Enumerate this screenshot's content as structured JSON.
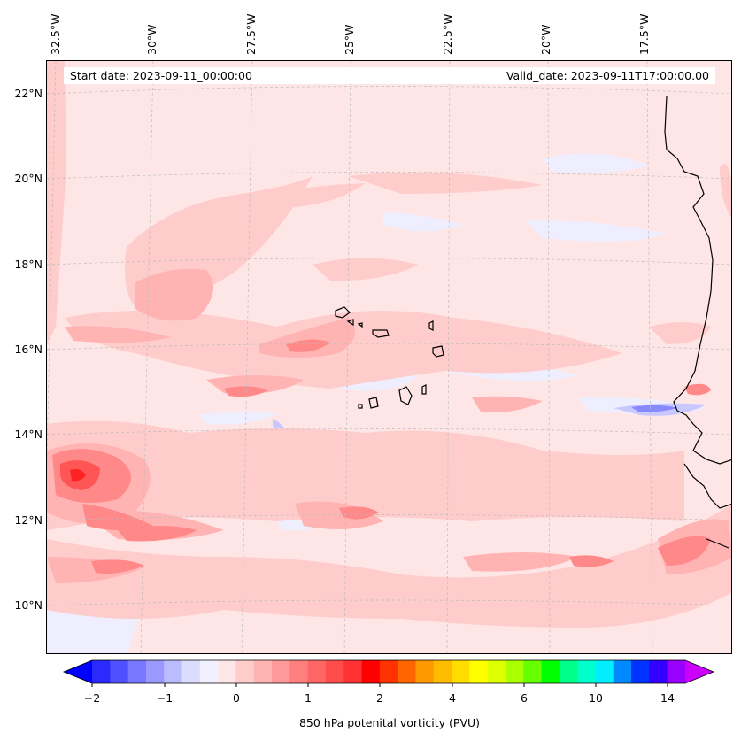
{
  "header": {
    "start_date": "Start date: 2023-09-11_00:00:00",
    "valid_date": "Valid_date: 2023-09-11T17:00:00.00"
  },
  "axes": {
    "lon_labels": [
      "32.5°W",
      "30°W",
      "27.5°W",
      "25°W",
      "22.5°W",
      "20°W",
      "17.5°W"
    ],
    "lat_labels": [
      "22°N",
      "20°N",
      "18°N",
      "16°N",
      "14°N",
      "12°N",
      "10°N"
    ]
  },
  "colorbar": {
    "tick_labels": [
      "−2",
      "−1",
      "0",
      "1",
      "2",
      "4",
      "6",
      "10",
      "14"
    ],
    "title": "850 hPa potenital vorticity (PVU)",
    "colors": [
      "#0000ff",
      "#2a2aff",
      "#5050ff",
      "#7777ff",
      "#9999ff",
      "#bbbbff",
      "#dcdcff",
      "#f0f0ff",
      "#ffe6e6",
      "#ffcccc",
      "#ffb3b3",
      "#ff9999",
      "#ff7f7f",
      "#ff6666",
      "#ff4d4d",
      "#ff3333",
      "#ff0000",
      "#ff3300",
      "#ff6600",
      "#ff9900",
      "#ffbb00",
      "#ffdd00",
      "#ffff00",
      "#ddff00",
      "#aaff00",
      "#66ff00",
      "#00ff00",
      "#00ff88",
      "#00ffcc",
      "#00eeff",
      "#0088ff",
      "#0033ff",
      "#3300ff",
      "#9900ff",
      "#cc00ff"
    ]
  }
}
